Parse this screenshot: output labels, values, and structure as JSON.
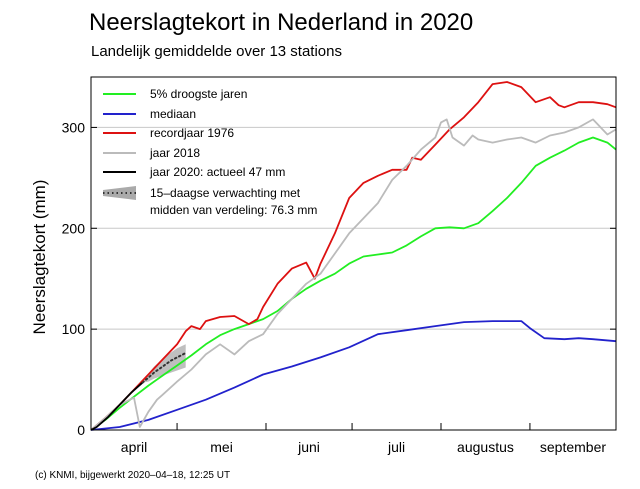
{
  "chart_data": {
    "type": "line",
    "title": "Neerslagtekort in Nederland in 2020",
    "subtitle": "Landelijk gemiddelde over 13 stations",
    "ylabel": "Neerslagtekort (mm)",
    "xlabel": "",
    "ylim": [
      0,
      350
    ],
    "yticks": [
      0,
      100,
      200,
      300
    ],
    "xlim": [
      0,
      183
    ],
    "gridlines": [
      100,
      200,
      300
    ],
    "months": [
      {
        "label": "april",
        "start": 0,
        "end": 30
      },
      {
        "label": "mei",
        "start": 30,
        "end": 61
      },
      {
        "label": "juni",
        "start": 61,
        "end": 91
      },
      {
        "label": "juli",
        "start": 91,
        "end": 122
      },
      {
        "label": "augustus",
        "start": 122,
        "end": 153
      },
      {
        "label": "september",
        "start": 153,
        "end": 183
      }
    ],
    "legend_position": "top-left",
    "series": [
      {
        "name": "5% droogste jaren",
        "color": "#22ee22",
        "x": [
          0,
          5,
          10,
          15,
          20,
          25,
          30,
          35,
          40,
          45,
          50,
          55,
          60,
          65,
          70,
          75,
          80,
          85,
          90,
          95,
          100,
          105,
          110,
          115,
          120,
          125,
          130,
          135,
          140,
          145,
          150,
          155,
          160,
          165,
          170,
          175,
          180,
          183
        ],
        "values": [
          0,
          10,
          22,
          33,
          44,
          54,
          64,
          74,
          85,
          94,
          100,
          105,
          110,
          118,
          130,
          140,
          148,
          155,
          165,
          172,
          174,
          176,
          183,
          192,
          200,
          201,
          200,
          205,
          217,
          230,
          245,
          262,
          270,
          277,
          285,
          290,
          285,
          278
        ]
      },
      {
        "name": "mediaan",
        "color": "#2222cc",
        "x": [
          0,
          10,
          20,
          30,
          40,
          50,
          60,
          70,
          80,
          90,
          100,
          110,
          120,
          130,
          140,
          150,
          153,
          158,
          165,
          170,
          175,
          183
        ],
        "values": [
          0,
          3,
          10,
          20,
          30,
          42,
          55,
          63,
          72,
          82,
          95,
          99,
          103,
          107,
          108,
          108,
          101,
          91,
          90,
          91,
          90,
          88
        ]
      },
      {
        "name": "recordjaar 1976",
        "color": "#dd1111",
        "x": [
          0,
          5,
          10,
          15,
          20,
          25,
          30,
          33,
          35,
          38,
          40,
          45,
          50,
          55,
          58,
          60,
          65,
          70,
          75,
          78,
          80,
          85,
          90,
          95,
          100,
          105,
          110,
          112,
          115,
          120,
          125,
          130,
          135,
          140,
          145,
          150,
          155,
          160,
          163,
          165,
          170,
          175,
          180,
          183
        ],
        "values": [
          0,
          12,
          25,
          40,
          55,
          70,
          85,
          98,
          103,
          100,
          108,
          112,
          113,
          105,
          110,
          122,
          145,
          160,
          166,
          150,
          165,
          195,
          230,
          245,
          252,
          258,
          258,
          270,
          268,
          283,
          298,
          310,
          325,
          343,
          345,
          340,
          325,
          330,
          322,
          320,
          325,
          325,
          323,
          320
        ]
      },
      {
        "name": "jaar 2018",
        "color": "#bbbbbb",
        "x": [
          0,
          5,
          10,
          15,
          17,
          20,
          23,
          25,
          30,
          35,
          40,
          45,
          50,
          55,
          60,
          65,
          70,
          75,
          80,
          85,
          90,
          95,
          100,
          105,
          110,
          115,
          120,
          122,
          124,
          126,
          130,
          133,
          135,
          140,
          145,
          150,
          155,
          160,
          165,
          170,
          175,
          180,
          183
        ],
        "values": [
          0,
          12,
          25,
          32,
          3,
          18,
          30,
          35,
          48,
          60,
          75,
          85,
          75,
          88,
          95,
          115,
          130,
          145,
          155,
          175,
          195,
          210,
          225,
          248,
          262,
          278,
          290,
          305,
          308,
          290,
          282,
          292,
          288,
          285,
          288,
          290,
          285,
          292,
          295,
          300,
          308,
          293,
          298
        ]
      },
      {
        "name": "jaar 2020: actueel 47 mm",
        "color": "#000000",
        "x": [
          0,
          2,
          4,
          6,
          8,
          10,
          12,
          14,
          16,
          18
        ],
        "values": [
          0,
          3,
          8,
          13,
          19,
          25,
          31,
          37,
          42,
          47
        ]
      },
      {
        "name": "15–daagse verwachting met midden van verdeling: 76.3 mm",
        "color": "#777777",
        "x": [
          18,
          20,
          22,
          24,
          26,
          28,
          30,
          33
        ],
        "values": [
          47,
          52,
          57,
          61,
          65,
          69,
          72,
          76.3
        ],
        "band_low": [
          47,
          48,
          51,
          53,
          55,
          57,
          59,
          62
        ],
        "band_high": [
          47,
          56,
          63,
          68,
          73,
          77,
          81,
          85
        ]
      }
    ]
  },
  "footer": "(c) KNMI, bijgewerkt 2020–04–18, 12:25 UT"
}
